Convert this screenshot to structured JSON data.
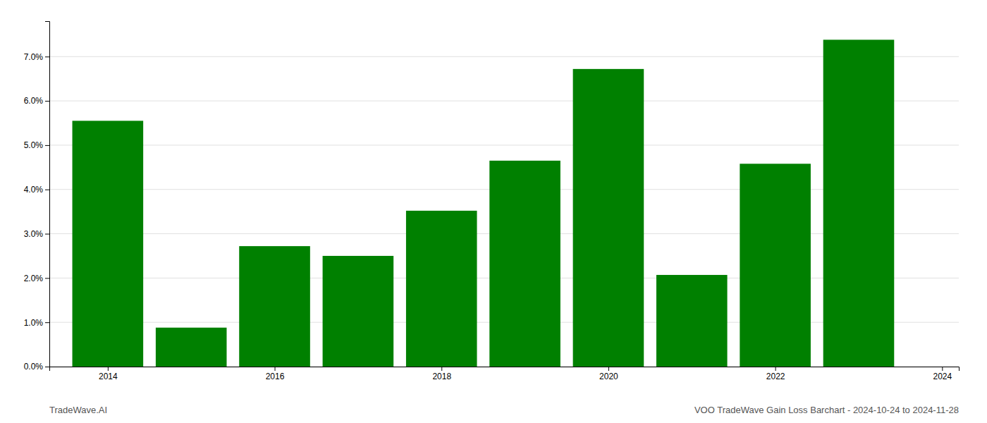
{
  "chart_data": {
    "type": "bar",
    "x": [
      2014,
      2015,
      2016,
      2017,
      2018,
      2019,
      2020,
      2021,
      2022,
      2023
    ],
    "values": [
      0.0555,
      0.0088,
      0.0272,
      0.025,
      0.0352,
      0.0465,
      0.0672,
      0.0207,
      0.0458,
      0.0738
    ],
    "color": "#008000",
    "xlim": [
      2013.3,
      2024.2
    ],
    "xticks": [
      2014,
      2016,
      2018,
      2020,
      2022,
      2024
    ],
    "ylim": [
      0.0,
      0.078
    ],
    "yticks": [
      {
        "value": 0.0,
        "label": "0.0%"
      },
      {
        "value": 0.01,
        "label": "1.0%"
      },
      {
        "value": 0.02,
        "label": "2.0%"
      },
      {
        "value": 0.03,
        "label": "3.0%"
      },
      {
        "value": 0.04,
        "label": "4.0%"
      },
      {
        "value": 0.05,
        "label": "5.0%"
      },
      {
        "value": 0.06,
        "label": "6.0%"
      },
      {
        "value": 0.07,
        "label": "7.0%"
      }
    ],
    "grid": true,
    "annotations": [
      "TradeWave.AI",
      "VOO TradeWave Gain Loss Barchart - 2024-10-24 to 2024-11-28"
    ]
  }
}
